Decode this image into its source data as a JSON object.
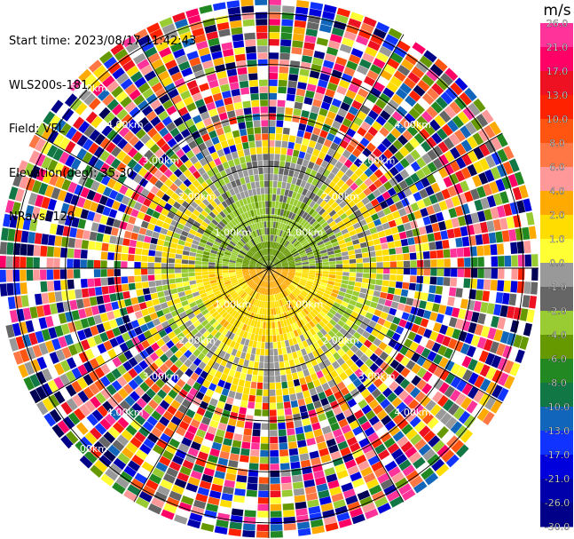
{
  "header": {
    "start_time": "Start time: 2023/08/17 11:42:43",
    "instrument": "WLS200s-181",
    "field": "Field: VEL",
    "elevation": "Elevation(deg): 35.30",
    "nrays": "NRays: 120"
  },
  "colorbar": {
    "unit": "m/s",
    "ticks": [
      "26.0",
      "21.0",
      "17.0",
      "13.0",
      "10.0",
      "8.0",
      "6.0",
      "4.0",
      "2.0",
      "1.0",
      "0.0",
      "-1.0",
      "-2.0",
      "-4.0",
      "-6.0",
      "-8.0",
      "-10.0",
      "-13.0",
      "-17.0",
      "-21.0",
      "-26.0",
      "-30.0"
    ],
    "colors": [
      "#ff3399",
      "#ff0066",
      "#ee1122",
      "#ff2200",
      "#ff5511",
      "#ff7744",
      "#ff9999",
      "#ffaa00",
      "#ffdd00",
      "#ffff33",
      "#999999",
      "#666666",
      "#99cc33",
      "#669900",
      "#228822",
      "#117744",
      "#1166bb",
      "#1133ff",
      "#0000dd",
      "#0000aa",
      "#000088",
      "#000055"
    ]
  },
  "chart_data": {
    "type": "ppi",
    "title": "",
    "field": "VEL",
    "rays": 120,
    "range_rings_km": [
      1,
      2,
      3,
      4,
      5
    ],
    "range_labels": [
      {
        "text": "5.00km",
        "az": 315
      },
      {
        "text": "4.00km",
        "az": 315
      },
      {
        "text": "3.00km",
        "az": 315
      },
      {
        "text": "2.00km",
        "az": 315
      },
      {
        "text": "1.00km",
        "az": 315
      },
      {
        "text": "4.00km",
        "az": 45
      },
      {
        "text": "3.00km",
        "az": 45
      },
      {
        "text": "2.00km",
        "az": 45
      },
      {
        "text": "1.00km",
        "az": 45
      },
      {
        "text": "1.00km",
        "az": 135
      },
      {
        "text": "2.00km",
        "az": 135
      },
      {
        "text": "3.00km",
        "az": 135
      },
      {
        "text": "4.00km",
        "az": 135
      },
      {
        "text": "1.00km",
        "az": 225
      },
      {
        "text": "2.00km",
        "az": 225
      },
      {
        "text": "3.00km",
        "az": 225
      },
      {
        "text": "4.00km",
        "az": 225
      },
      {
        "text": "5.00km",
        "az": 225
      }
    ],
    "azimuth_lines_deg": [
      0,
      30,
      60,
      90,
      120,
      150,
      180,
      210,
      240,
      270,
      300,
      330
    ],
    "max_range_km": 5.3,
    "regions": [
      {
        "description": "near-zero velocities (gray/green) close to radar, north half",
        "range_km": [
          0,
          2.0
        ],
        "az": [
          270,
          90
        ],
        "value": -1.0
      },
      {
        "description": "positive velocities (yellow/orange) close to radar, south half",
        "range_km": [
          0,
          1.5
        ],
        "az": [
          90,
          270
        ],
        "value": 4.0
      },
      {
        "description": "noisy random velocities beyond ~2.5 km",
        "range_km": [
          2.5,
          5.3
        ],
        "value": "noise"
      }
    ]
  }
}
